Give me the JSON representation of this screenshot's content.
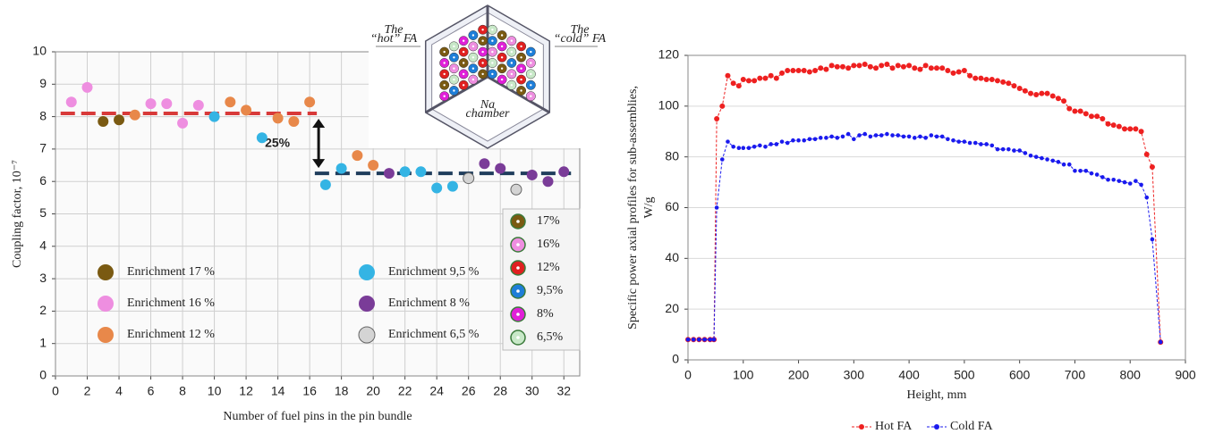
{
  "chart_data": [
    {
      "type": "scatter",
      "xlabel": "Number of fuel pins in the pin bundle",
      "ylabel": "Coupling factor, 10⁻⁷",
      "xlim": [
        0,
        33
      ],
      "ylim": [
        0,
        10
      ],
      "xticks": [
        0,
        2,
        4,
        6,
        8,
        10,
        12,
        14,
        16,
        18,
        20,
        22,
        24,
        26,
        28,
        30,
        32
      ],
      "yticks": [
        0,
        1,
        2,
        3,
        4,
        5,
        6,
        7,
        8,
        9,
        10
      ],
      "grid": true,
      "series": [
        {
          "name": "Enrichment 17 %",
          "color": "#7a5a12",
          "x": [
            3,
            4
          ],
          "y": [
            7.85,
            7.9
          ]
        },
        {
          "name": "Enrichment 16 %",
          "color": "#ee8ee0",
          "x": [
            1,
            2,
            6,
            7,
            8,
            9
          ],
          "y": [
            8.45,
            8.9,
            8.4,
            8.4,
            7.8,
            8.35
          ]
        },
        {
          "name": "Enrichment 12 %",
          "color": "#e8884a",
          "x": [
            5,
            11,
            12,
            14,
            15,
            16,
            19,
            20
          ],
          "y": [
            8.05,
            8.45,
            8.2,
            7.95,
            7.85,
            8.45,
            6.8,
            6.5
          ]
        },
        {
          "name": "Enrichment 9,5 %",
          "color": "#34b4e4",
          "x": [
            10,
            13,
            17,
            18,
            22,
            23,
            24,
            25
          ],
          "y": [
            8.0,
            7.35,
            5.9,
            6.4,
            6.3,
            6.3,
            5.8,
            5.85
          ]
        },
        {
          "name": "Enrichment 8 %",
          "color": "#7a3c98",
          "x": [
            21,
            27,
            28,
            30,
            31,
            32
          ],
          "y": [
            6.25,
            6.55,
            6.4,
            6.2,
            6.0,
            6.3
          ]
        },
        {
          "name": "Enrichment 6,5 %",
          "color": "#d4d4d4",
          "x": [
            26,
            29
          ],
          "y": [
            6.1,
            5.75
          ]
        }
      ],
      "reference_lines": [
        {
          "value": 8.1,
          "x": [
            1,
            16
          ],
          "color": "#d83a3a"
        },
        {
          "value": 6.25,
          "x": [
            17,
            32
          ],
          "color": "#1f3d5c"
        }
      ],
      "annotation": "25%",
      "pin_legend": [
        {
          "label": "17%",
          "color": "#7a5a12"
        },
        {
          "label": "16%",
          "color": "#ee8ee0"
        },
        {
          "label": "12%",
          "color": "#e02020"
        },
        {
          "label": "9,5%",
          "color": "#1e7ed8"
        },
        {
          "label": "8%",
          "color": "#e020d8"
        },
        {
          "label": "6,5%",
          "color": "#c8e8c8"
        }
      ],
      "inset": {
        "hot_label": [
          "The",
          "“hot” FA"
        ],
        "cold_label": [
          "The",
          "“cold” FA"
        ],
        "chamber_label": [
          "Na",
          "chamber"
        ]
      }
    },
    {
      "type": "line",
      "xlabel": "Height, mm",
      "ylabel": [
        "Specific power axial profiles for sub-assemblies,",
        "W/g"
      ],
      "xlim": [
        0,
        900
      ],
      "ylim": [
        0,
        120
      ],
      "xticks": [
        0,
        100,
        200,
        300,
        400,
        500,
        600,
        700,
        800,
        900
      ],
      "yticks": [
        0,
        20,
        40,
        60,
        80,
        100,
        120
      ],
      "grid": true,
      "x": [
        0,
        10,
        20,
        30,
        40,
        47,
        52,
        62,
        72,
        82,
        92,
        100,
        110,
        120,
        130,
        140,
        150,
        160,
        170,
        180,
        190,
        200,
        210,
        220,
        230,
        240,
        250,
        260,
        270,
        280,
        290,
        300,
        310,
        320,
        330,
        340,
        350,
        360,
        370,
        380,
        390,
        400,
        410,
        420,
        430,
        440,
        450,
        460,
        470,
        480,
        490,
        500,
        510,
        520,
        530,
        540,
        550,
        560,
        570,
        580,
        590,
        600,
        610,
        620,
        630,
        640,
        650,
        660,
        670,
        680,
        690,
        700,
        710,
        720,
        730,
        740,
        750,
        760,
        770,
        780,
        790,
        800,
        810,
        820,
        830,
        840,
        855
      ],
      "series": [
        {
          "name": "Hot FA",
          "color": "#ee2020",
          "values": [
            8,
            8,
            8,
            8,
            8,
            8,
            95,
            100,
            112,
            109,
            108,
            110.5,
            110,
            110,
            111,
            111,
            112,
            111,
            113,
            114,
            114,
            114,
            114,
            113.5,
            114,
            115,
            114.5,
            116,
            115.5,
            115.5,
            115,
            116,
            116,
            116.5,
            115.5,
            115,
            116,
            116.5,
            115,
            116,
            115.5,
            116,
            115,
            114.5,
            116,
            115,
            115,
            115,
            114,
            113,
            113.5,
            114,
            112,
            111,
            111,
            110.5,
            110.5,
            110,
            109.5,
            109,
            108,
            107,
            106,
            105,
            104.5,
            105,
            105,
            104,
            103,
            102,
            99,
            98,
            98,
            97,
            96,
            96,
            95,
            93,
            92.5,
            92,
            91,
            91,
            91,
            90,
            81,
            76,
            7
          ]
        },
        {
          "name": "Cold FA",
          "color": "#1a1aee",
          "values": [
            8,
            8,
            8,
            8,
            8,
            8,
            60,
            79,
            86,
            84,
            83.5,
            83.5,
            83.5,
            84,
            84.5,
            84,
            85,
            85,
            86,
            85.5,
            86.5,
            86.5,
            86.5,
            87,
            87,
            87.5,
            87.5,
            88,
            87.5,
            88,
            89,
            87,
            88.5,
            89,
            88,
            88.5,
            88.5,
            89,
            88.5,
            88.5,
            88,
            88,
            87.5,
            88,
            87.5,
            88.5,
            88,
            88,
            87,
            86.5,
            86,
            86,
            85.5,
            85.5,
            85,
            85,
            84.5,
            83,
            83,
            83,
            82.5,
            82.5,
            81.5,
            80.5,
            80,
            79.5,
            79,
            78.5,
            78,
            77,
            77,
            74.5,
            74.5,
            74.5,
            73.5,
            73,
            72,
            71,
            71,
            70.5,
            70,
            69.5,
            70.5,
            69,
            64,
            47.5,
            7
          ]
        }
      ]
    }
  ]
}
